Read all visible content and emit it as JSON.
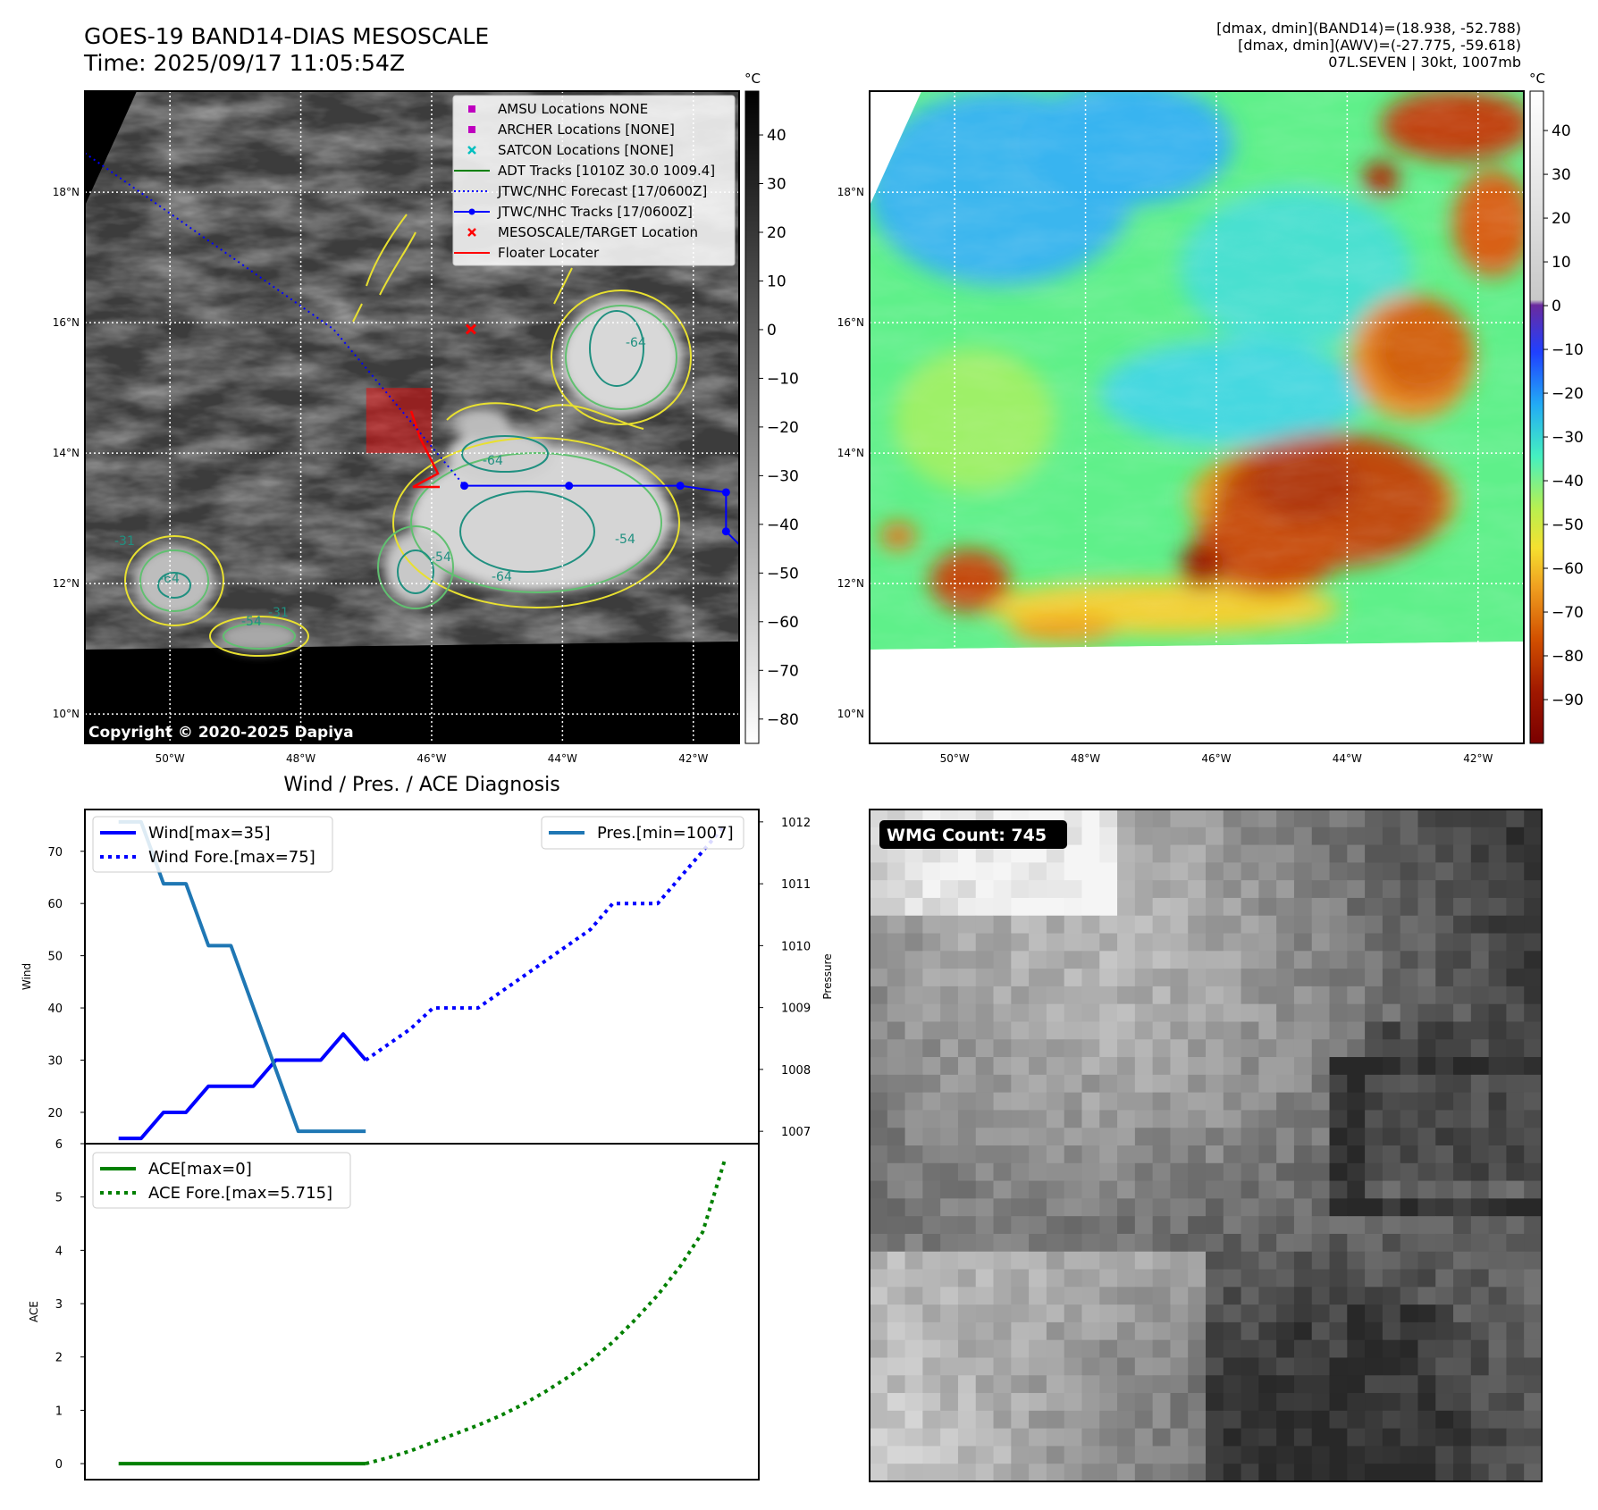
{
  "header": {
    "title_line1": "GOES-19 BAND14-DIAS MESOSCALE",
    "title_line2": "Time: 2025/09/17 11:05:54Z",
    "info_line1": "[dmax, dmin](BAND14)=(18.938, -52.788)",
    "info_line2": "[dmax, dmin](AWV)=(-27.775, -59.618)",
    "info_line3": "07L.SEVEN | 30kt, 1007mb"
  },
  "map_axes": {
    "lat_labels": [
      "18°N",
      "16°N",
      "14°N",
      "12°N",
      "10°N"
    ],
    "lat_values": [
      18,
      16,
      14,
      12,
      10
    ],
    "lon_labels": [
      "50°W",
      "48°W",
      "46°W",
      "44°W",
      "42°W"
    ],
    "lon_values": [
      -50,
      -48,
      -46,
      -44,
      -42
    ],
    "lat_range": [
      9.55,
      19.55
    ],
    "lon_range": [
      -51.3,
      -41.3
    ]
  },
  "ir_panel": {
    "copyright": "Copyright © 2020-2025 Dapiya",
    "colorbar_unit": "°C",
    "colorbar_ticks": [
      "40",
      "30",
      "20",
      "10",
      "0",
      "−10",
      "−20",
      "−30",
      "−40",
      "−50",
      "−60",
      "−70",
      "−80"
    ],
    "colorbar_tick_values": [
      40,
      30,
      20,
      10,
      0,
      -10,
      -20,
      -30,
      -40,
      -50,
      -60,
      -70,
      -80
    ],
    "colorbar_range": [
      -85,
      49
    ],
    "contour_labels": [
      "-64",
      "-64",
      "-64",
      "-54",
      "-54",
      "-54",
      "-64",
      "-31",
      "-31"
    ],
    "legend": [
      {
        "label": "AMSU Locations NONE",
        "marker": "square",
        "color": "#bf00bf"
      },
      {
        "label": "ARCHER Locations [NONE]",
        "marker": "square",
        "color": "#bf00bf"
      },
      {
        "label": "SATCON Locations [NONE]",
        "marker": "x",
        "color": "#00bfbf"
      },
      {
        "label": "ADT Tracks [1010Z 30.0 1009.4]",
        "marker": "line",
        "color": "#008000"
      },
      {
        "label": "JTWC/NHC Forecast [17/0600Z]",
        "marker": "dotted",
        "color": "#0000ff"
      },
      {
        "label": "JTWC/NHC Tracks [17/0600Z]",
        "marker": "line-dot",
        "color": "#0000ff"
      },
      {
        "label": "MESOSCALE/TARGET Location",
        "marker": "x",
        "color": "#ff0000"
      },
      {
        "label": "Floater Locater",
        "marker": "line",
        "color": "#ff0000"
      }
    ],
    "target_location": {
      "lat": 15.9,
      "lon": -45.4
    },
    "forecast_track": [
      [
        -51.3,
        18.6
      ],
      [
        -47.5,
        15.9
      ],
      [
        -45.5,
        13.5
      ]
    ],
    "nhc_track": [
      [
        -45.5,
        13.5
      ],
      [
        -43.9,
        13.5
      ],
      [
        -42.2,
        13.5
      ],
      [
        -41.5,
        13.4
      ],
      [
        -41.5,
        12.8
      ],
      [
        -41.3,
        12.6
      ]
    ],
    "floater_box": {
      "lon": [
        -47.0,
        -46.0
      ],
      "lat": [
        14.0,
        15.0
      ]
    }
  },
  "awv_panel": {
    "colorbar_unit": "°C",
    "colorbar_ticks": [
      "40",
      "30",
      "20",
      "10",
      "0",
      "−10",
      "−20",
      "−30",
      "−40",
      "−50",
      "−60",
      "−70",
      "−80",
      "−90"
    ],
    "colorbar_tick_values": [
      40,
      30,
      20,
      10,
      0,
      -10,
      -20,
      -30,
      -40,
      -50,
      -60,
      -70,
      -80,
      -90
    ],
    "colorbar_range": [
      -100,
      49
    ]
  },
  "wind_chart": {
    "title": "Wind / Pres. / ACE Diagnosis",
    "ylabel_left": "Wind",
    "ylabel_right": "Pressure",
    "yticks_left": [
      20,
      30,
      40,
      50,
      60,
      70
    ],
    "yticks_right": [
      1007,
      1008,
      1009,
      1010,
      1011,
      1012
    ],
    "legend_wind": "Wind[max=35]",
    "legend_wind_fore": "Wind Fore.[max=75]",
    "legend_pres": "Pres.[min=1007]"
  },
  "ace_chart": {
    "ylabel": "ACE",
    "yticks": [
      0,
      1,
      2,
      3,
      4,
      5,
      6
    ],
    "legend_ace": "ACE[max=0]",
    "legend_ace_fore": "ACE Fore.[max=5.715]"
  },
  "wmg_panel": {
    "label": "WMG Count: 745"
  },
  "chart_data": [
    {
      "type": "line",
      "title": "Wind / Pres. / ACE Diagnosis",
      "ylabel": "Wind",
      "y2label": "Pressure",
      "xlim": [
        -1.5,
        28.5
      ],
      "ylim": [
        14,
        78
      ],
      "y2lim": [
        1006.8,
        1012.2
      ],
      "series": [
        {
          "name": "Wind[max=35]",
          "color": "#0000ff",
          "style": "solid",
          "x": [
            0,
            1,
            2,
            3,
            4,
            5,
            6,
            7,
            8,
            9,
            10,
            11
          ],
          "values": [
            15,
            15,
            20,
            20,
            25,
            25,
            25,
            30,
            30,
            30,
            35,
            30
          ]
        },
        {
          "name": "Wind Fore.[max=75]",
          "color": "#0000ff",
          "style": "dotted",
          "x": [
            11,
            12,
            13,
            14,
            15,
            16,
            17,
            18,
            19,
            20,
            21,
            22,
            23,
            24,
            25,
            26,
            27
          ],
          "values": [
            30,
            33,
            36,
            40,
            40,
            40,
            43,
            46,
            49,
            52,
            55,
            60,
            60,
            60,
            65,
            70,
            75
          ]
        },
        {
          "name": "Pres.[min=1007]",
          "color": "#1f77b4",
          "style": "solid",
          "axis": "right",
          "x": [
            0,
            1,
            2,
            3,
            4,
            5,
            6,
            7,
            8,
            9,
            10,
            11
          ],
          "values": [
            1012,
            1012,
            1011,
            1011,
            1010,
            1010,
            1009,
            1008,
            1007,
            1007,
            1007,
            1007
          ]
        }
      ]
    },
    {
      "type": "line",
      "ylabel": "ACE",
      "xlim": [
        -1.5,
        28.5
      ],
      "ylim": [
        -0.3,
        6.0
      ],
      "series": [
        {
          "name": "ACE[max=0]",
          "color": "#008000",
          "style": "solid",
          "x": [
            0,
            1,
            2,
            3,
            4,
            5,
            6,
            7,
            8,
            9,
            10,
            11
          ],
          "values": [
            0,
            0,
            0,
            0,
            0,
            0,
            0,
            0,
            0,
            0,
            0,
            0
          ]
        },
        {
          "name": "ACE Fore.[max=5.715]",
          "color": "#008000",
          "style": "dotted",
          "x": [
            11,
            12,
            13,
            14,
            15,
            16,
            17,
            18,
            19,
            20,
            21,
            22,
            23,
            24,
            25,
            26,
            27
          ],
          "values": [
            0,
            0.11,
            0.24,
            0.4,
            0.56,
            0.72,
            0.9,
            1.11,
            1.35,
            1.62,
            1.92,
            2.28,
            2.7,
            3.16,
            3.7,
            4.34,
            5.715
          ]
        }
      ]
    }
  ]
}
